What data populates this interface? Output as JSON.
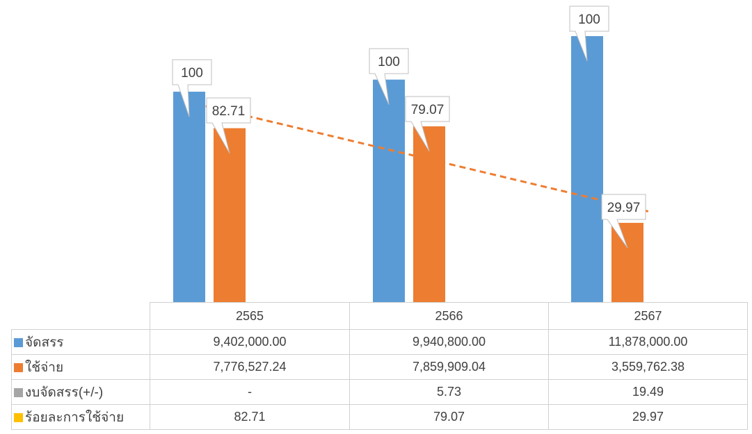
{
  "chart_data": {
    "type": "bar",
    "categories": [
      "2565",
      "2566",
      "2567"
    ],
    "series": [
      {
        "name": "จัดสรร",
        "color": "#5B9BD5",
        "values": [
          9402000.0,
          9940800.0,
          11878000.0
        ],
        "display": [
          "9,402,000.00",
          "9,940,800.00",
          "11,878,000.00"
        ],
        "bar_labels": [
          "100",
          "100",
          "100"
        ],
        "plotted": true
      },
      {
        "name": "ใช้จ่าย",
        "color": "#ED7D31",
        "values": [
          7776527.24,
          7859909.04,
          3559762.38
        ],
        "display": [
          "7,776,527.24",
          "7,859,909.04",
          "3,559,762.38"
        ],
        "bar_labels": [
          "82.71",
          "79.07",
          "29.97"
        ],
        "plotted": true
      },
      {
        "name": "งบจัดสรร(+/-)",
        "color": "#A5A5A5",
        "values": [
          null,
          5.73,
          19.49
        ],
        "display": [
          "-",
          "5.73",
          "19.49"
        ],
        "plotted": false
      },
      {
        "name": "ร้อยละการใช้จ่าย",
        "color": "#FFC000",
        "values": [
          82.71,
          79.07,
          29.97
        ],
        "display": [
          "82.71",
          "79.07",
          "29.97"
        ],
        "plotted": false
      }
    ],
    "trendline": {
      "series": "ใช้จ่าย",
      "style": "dashed",
      "color": "#ED7D31"
    },
    "ylim": [
      0,
      12500000
    ],
    "grid": false,
    "legend": "data-table"
  }
}
